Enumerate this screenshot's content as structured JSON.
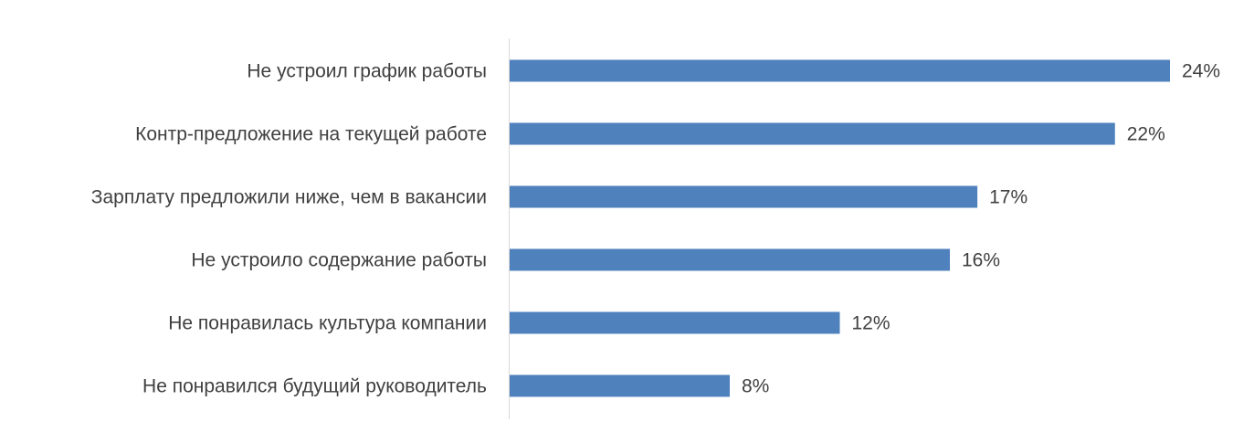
{
  "chart_data": {
    "type": "bar",
    "orientation": "horizontal",
    "categories": [
      "Не устроил график работы",
      "Контр-предложение на текущей работе",
      "Зарплату предложили ниже, чем в вакансии",
      "Не устроило содержание работы",
      "Не понравилась культура компании",
      "Не понравился будущий руководитель"
    ],
    "values": [
      24,
      22,
      17,
      16,
      12,
      8
    ],
    "data_labels": [
      "24%",
      "22%",
      "17%",
      "16%",
      "12%",
      "8%"
    ],
    "unit": "%",
    "title": "",
    "xlabel": "",
    "ylabel": "",
    "xlim": [
      0,
      24
    ],
    "grid": false,
    "legend": "none",
    "colors": {
      "bar": "#4f81bd",
      "axis": "#d9d9d9",
      "text": "#404040"
    }
  }
}
